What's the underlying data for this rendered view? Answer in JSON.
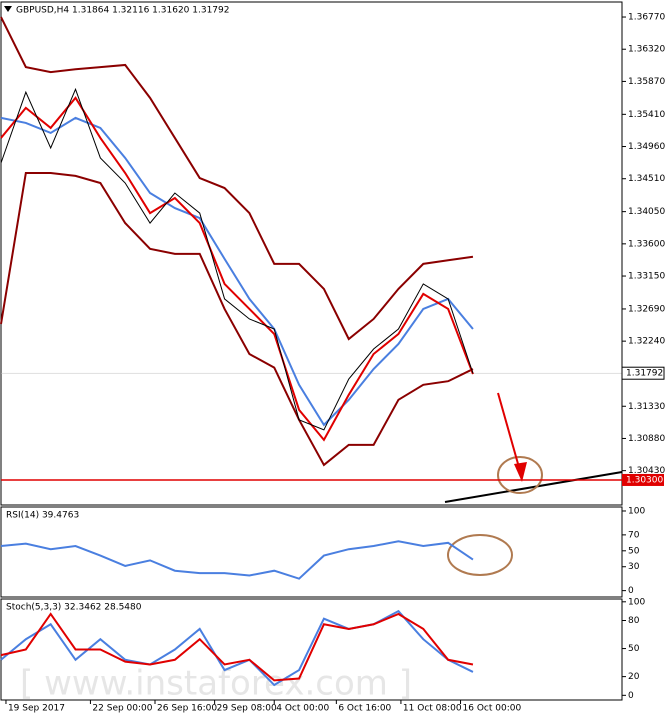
{
  "chart_data": [
    {
      "type": "line",
      "title": "GBPUSD,H4 1.31864 1.32116 1.31620 1.31792",
      "xlim": [
        0,
        25
      ],
      "ylim": [
        1.2995,
        1.3698
      ],
      "yticks": [
        {
          "value": 1.3677,
          "label": "1.36770"
        },
        {
          "value": 1.3632,
          "label": "1.36320"
        },
        {
          "value": 1.3587,
          "label": "1.35870"
        },
        {
          "value": 1.3541,
          "label": "1.35410"
        },
        {
          "value": 1.3496,
          "label": "1.34960"
        },
        {
          "value": 1.3451,
          "label": "1.34510"
        },
        {
          "value": 1.3405,
          "label": "1.34050"
        },
        {
          "value": 1.336,
          "label": "1.33600"
        },
        {
          "value": 1.3315,
          "label": "1.33150"
        },
        {
          "value": 1.3269,
          "label": "1.32690"
        },
        {
          "value": 1.3224,
          "label": "1.32240"
        },
        {
          "value": 1.3133,
          "label": "1.31330"
        },
        {
          "value": 1.3088,
          "label": "1.30880"
        },
        {
          "value": 1.3043,
          "label": "1.30430"
        }
      ],
      "last_price": 1.31792,
      "hlines": [
        {
          "value": 1.303,
          "label": "1.30300",
          "color": "#e00000"
        }
      ],
      "series": [
        {
          "color": "#8b0000",
          "values": [
            1.3677,
            1.3607,
            1.36,
            1.3604,
            1.3607,
            1.361,
            1.3564,
            1.3508,
            1.3452,
            1.3438,
            1.3403,
            1.3332,
            1.3332,
            1.3297,
            1.3227,
            1.3255,
            1.3297,
            1.3332,
            1.3337,
            1.3342
          ]
        },
        {
          "color": "#8b0000",
          "values": [
            1.3248,
            1.3459,
            1.3459,
            1.3455,
            1.3445,
            1.3389,
            1.3353,
            1.3346,
            1.3346,
            1.3269,
            1.3206,
            1.3187,
            1.3114,
            1.3051,
            1.3079,
            1.3079,
            1.3142,
            1.3163,
            1.3168,
            1.3185
          ]
        },
        {
          "color": "#4a7fe0",
          "values": [
            1.3536,
            1.3529,
            1.3515,
            1.3536,
            1.3522,
            1.348,
            1.3431,
            1.341,
            1.3396,
            1.3339,
            1.3283,
            1.3241,
            1.3163,
            1.3107,
            1.3142,
            1.3185,
            1.322,
            1.3269,
            1.3283,
            1.3241
          ]
        },
        {
          "color": "#e00000",
          "values": [
            1.3508,
            1.355,
            1.3522,
            1.3564,
            1.3508,
            1.3459,
            1.3403,
            1.3424,
            1.3389,
            1.3304,
            1.3269,
            1.3234,
            1.3128,
            1.3086,
            1.3149,
            1.3206,
            1.3234,
            1.329,
            1.3269,
            1.3178
          ]
        },
        {
          "color": "#000000",
          "values": [
            1.3473,
            1.3572,
            1.3494,
            1.3576,
            1.348,
            1.3445,
            1.3389,
            1.3431,
            1.3403,
            1.3283,
            1.3255,
            1.3241,
            1.3114,
            1.31,
            1.3171,
            1.3213,
            1.3241,
            1.3304,
            1.3283,
            1.3179
          ]
        }
      ]
    },
    {
      "type": "line",
      "title": "RSI(14) 39.4763",
      "xlim": [
        0,
        25
      ],
      "ylim": [
        -8,
        105
      ],
      "yticks": [
        100,
        70,
        50,
        30,
        0
      ],
      "series": [
        {
          "color": "#4a7fe0",
          "values": [
            56,
            59,
            52,
            56,
            44,
            31,
            38,
            25,
            22,
            22,
            19,
            25,
            15,
            44,
            52,
            56,
            62,
            56,
            60,
            39
          ]
        }
      ]
    },
    {
      "type": "line",
      "title": "Stoch(5,3,3) 32.3462 28.5480",
      "xlim": [
        0,
        25
      ],
      "ylim": [
        -5,
        103
      ],
      "yticks": [
        100,
        80,
        50,
        20,
        0
      ],
      "xticks": [
        {
          "value": 0.2,
          "label": "19 Sep 2017"
        },
        {
          "value": 3.6,
          "label": "22 Sep 00:00"
        },
        {
          "value": 6.2,
          "label": "26 Sep 16:00"
        },
        {
          "value": 8.6,
          "label": "29 Sep 08:00"
        },
        {
          "value": 11,
          "label": "4 Oct 00:00"
        },
        {
          "value": 13.5,
          "label": "6 Oct 16:00"
        },
        {
          "value": 16.1,
          "label": "11 Oct 08:00"
        },
        {
          "value": 18.5,
          "label": "16 Oct 00:00"
        }
      ],
      "watermark": "[ www.instaforex.com ]",
      "series": [
        {
          "color": "#4a7fe0",
          "values": [
            38,
            60,
            76,
            38,
            60,
            38,
            33,
            49,
            71,
            27,
            38,
            11,
            27,
            82,
            71,
            76,
            90,
            60,
            38,
            25
          ]
        },
        {
          "color": "#e00000",
          "values": [
            43,
            49,
            87,
            49,
            49,
            36,
            33,
            38,
            60,
            33,
            38,
            16,
            18,
            76,
            71,
            76,
            87,
            71,
            38,
            33
          ]
        }
      ]
    }
  ]
}
